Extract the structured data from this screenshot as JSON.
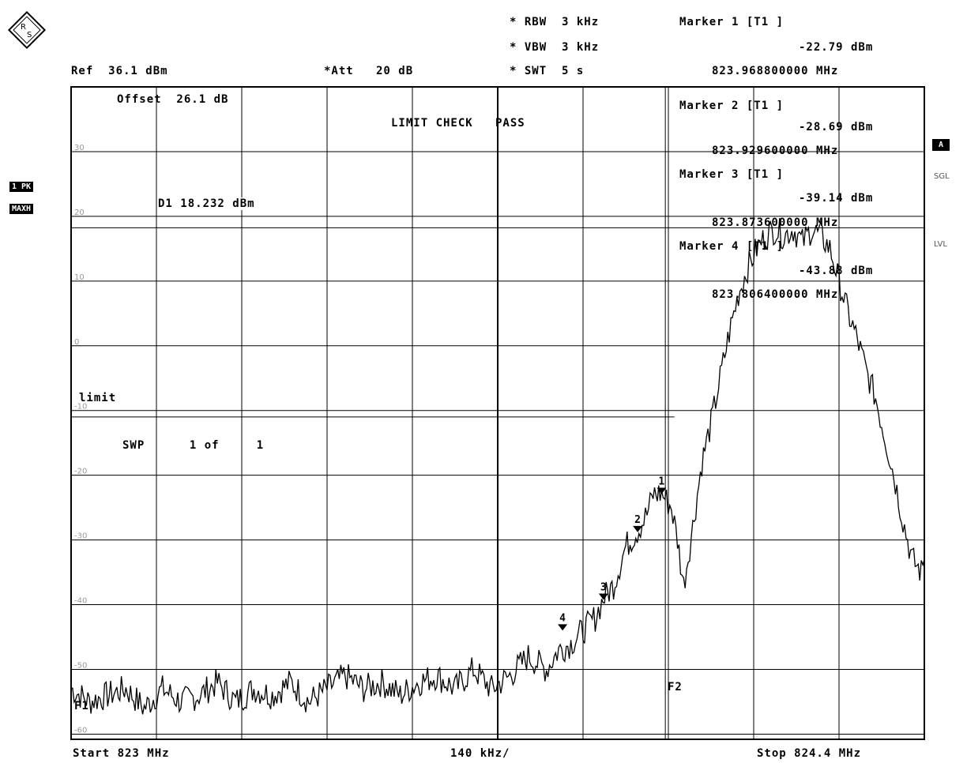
{
  "header": {
    "rbw": "* RBW  3 kHz",
    "vbw": "* VBW  3 kHz",
    "swt": "* SWT  5 s",
    "ref": "Ref  36.1 dBm",
    "att": "*Att   20 dB",
    "marker1_title": "Marker 1 [T1 ]",
    "marker1_level": "-22.79 dBm",
    "marker1_freq": "823.968800000 MHz"
  },
  "plot_text": {
    "offset": "Offset  26.1 dB",
    "limit_check": "LIMIT CHECK   PASS",
    "d1_line": "D1 18.232 dBm",
    "limit": "limit",
    "swp": "SWP      1 of     1",
    "f1": "F1",
    "f2": "F2"
  },
  "marker_panel": [
    {
      "title": "Marker 2 [T1 ]",
      "level": "-28.69 dBm",
      "freq": "823.929600000 MHz"
    },
    {
      "title": "Marker 3 [T1 ]",
      "level": "-39.14 dBm",
      "freq": "823.873600000 MHz"
    },
    {
      "title": "Marker 4 [T1 ]",
      "level": "-43.88 dBm",
      "freq": "823.806400000 MHz"
    }
  ],
  "side_left": {
    "trace_badge": "1 PK",
    "mode_badge": "MAXH"
  },
  "side_right": {
    "a_badge": "A",
    "sgl": "SGL",
    "lvl": "LVL"
  },
  "footer": {
    "start": "Start 823 MHz",
    "span": "140 kHz/",
    "stop": "Stop 824.4 MHz"
  },
  "chart_data": {
    "type": "line",
    "xlabel": "",
    "ylabel": "",
    "xlim": [
      823.0,
      824.4
    ],
    "ylim": [
      -70,
      30
    ],
    "y_ticks": [
      30,
      20,
      10,
      0,
      -10,
      -20,
      -30,
      -40,
      -50,
      -60
    ],
    "y_tick_labels": [
      "30",
      "20",
      "10",
      "0",
      "-10",
      "-20",
      "-30",
      "-40",
      "-50",
      "-60"
    ],
    "grid": true,
    "display_line_dbm": 18.232,
    "limit_line_dbm": -11,
    "limit_line_end_mhz": 823.99,
    "f1_mhz": 823.0,
    "f2_mhz": 823.975,
    "series": [
      {
        "x": [
          823.0,
          823.03,
          823.06,
          823.09,
          823.12,
          823.15,
          823.18,
          823.21,
          823.24,
          823.27,
          823.3,
          823.33,
          823.36,
          823.39,
          823.42,
          823.45,
          823.48,
          823.51,
          823.54,
          823.57,
          823.6,
          823.63,
          823.66,
          823.69,
          823.72,
          823.75,
          823.78,
          823.8,
          823.82,
          823.84,
          823.86,
          823.873,
          823.89,
          823.91,
          823.929,
          823.945,
          823.955,
          823.9688,
          823.985,
          823.995,
          824.005,
          824.02,
          824.035,
          824.05,
          824.065,
          824.08,
          824.095,
          824.11,
          824.125,
          824.14,
          824.155,
          824.17,
          824.185,
          824.2,
          824.215,
          824.23,
          824.245,
          824.26,
          824.275,
          824.29,
          824.305,
          824.32,
          824.335,
          824.35,
          824.365,
          824.38,
          824.395,
          824.4
        ],
        "y": [
          -53,
          -55,
          -54,
          -53,
          -56,
          -53,
          -55,
          -54,
          -52,
          -55,
          -53,
          -54,
          -52,
          -55,
          -53,
          -51,
          -53,
          -52,
          -54,
          -52,
          -51,
          -53,
          -50,
          -53,
          -51,
          -48,
          -50,
          -47,
          -46,
          -44,
          -42,
          -39.14,
          -37,
          -31,
          -28.69,
          -26,
          -23,
          -22.79,
          -25,
          -30,
          -37,
          -28,
          -18,
          -12,
          -5,
          2,
          8,
          12,
          15,
          17,
          18,
          17,
          18,
          16,
          18,
          17,
          15,
          10,
          5,
          1,
          -4,
          -8,
          -14,
          -20,
          -27,
          -33,
          -35,
          -33
        ]
      }
    ],
    "markers": [
      {
        "n": "1",
        "x": 823.9688,
        "y": -22.79
      },
      {
        "n": "2",
        "x": 823.9296,
        "y": -28.69
      },
      {
        "n": "3",
        "x": 823.8736,
        "y": -39.14
      },
      {
        "n": "4",
        "x": 823.8064,
        "y": -43.88
      }
    ]
  }
}
